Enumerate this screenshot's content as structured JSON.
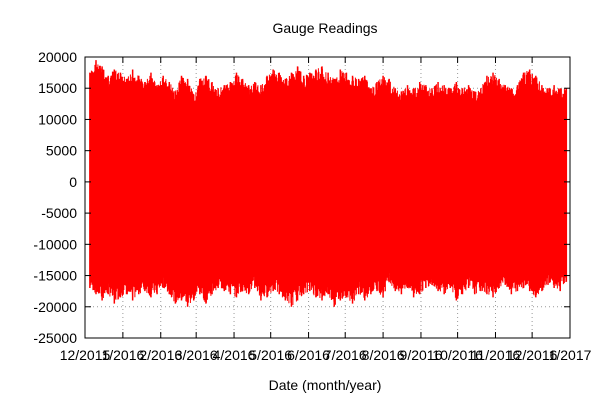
{
  "chart_data": {
    "type": "area",
    "title": "Gauge Readings",
    "xlabel": "Date (month/year)",
    "ylabel": "",
    "ylim": [
      -25000,
      20000
    ],
    "y_ticks": [
      20000,
      15000,
      10000,
      5000,
      0,
      -5000,
      -10000,
      -15000,
      -20000,
      -25000
    ],
    "y_tick_labels": [
      "20000",
      "15000",
      "10000",
      "5000",
      "0",
      "-5000",
      "-10000",
      "-15000",
      "-20000",
      "-25000"
    ],
    "x_ticks": [
      "2015-12-01",
      "2016-01-01",
      "2016-02-01",
      "2016-03-01",
      "2016-04-01",
      "2016-05-01",
      "2016-06-01",
      "2016-07-01",
      "2016-08-01",
      "2016-09-01",
      "2016-10-01",
      "2016-11-01",
      "2016-12-01",
      "2017-01-01"
    ],
    "x_tick_labels": [
      "12/2015",
      "1/2016",
      "2/2016",
      "3/2016",
      "4/2016",
      "5/2016",
      "6/2016",
      "7/2016",
      "8/2016",
      "9/2016",
      "10/2016",
      "11/2016",
      "12/2016",
      "1/2017"
    ],
    "xlim": [
      "2015-12-01",
      "2017-01-01"
    ],
    "grid": true,
    "series_color": "#ff0000",
    "series": [
      {
        "x": [
          "2015-12-05",
          "2015-12-10",
          "2015-12-15",
          "2015-12-20",
          "2015-12-25",
          "2015-12-30",
          "2016-01-04",
          "2016-01-09",
          "2016-01-14",
          "2016-01-19",
          "2016-01-24",
          "2016-01-29",
          "2016-02-03",
          "2016-02-08",
          "2016-02-13",
          "2016-02-18",
          "2016-02-23",
          "2016-02-28",
          "2016-03-04",
          "2016-03-09",
          "2016-03-14",
          "2016-03-19",
          "2016-03-24",
          "2016-03-29",
          "2016-04-03",
          "2016-04-08",
          "2016-04-13",
          "2016-04-18",
          "2016-04-23",
          "2016-04-28",
          "2016-05-03",
          "2016-05-08",
          "2016-05-13",
          "2016-05-18",
          "2016-05-23",
          "2016-05-28",
          "2016-06-02",
          "2016-06-07",
          "2016-06-12",
          "2016-06-17",
          "2016-06-22",
          "2016-06-27",
          "2016-07-02",
          "2016-07-07",
          "2016-07-12",
          "2016-07-17",
          "2016-07-22",
          "2016-07-27",
          "2016-08-01",
          "2016-08-06",
          "2016-08-11",
          "2016-08-16",
          "2016-08-21",
          "2016-08-26",
          "2016-08-31",
          "2016-09-05",
          "2016-09-10",
          "2016-09-15",
          "2016-09-20",
          "2016-09-25",
          "2016-09-30",
          "2016-10-05",
          "2016-10-10",
          "2016-10-15",
          "2016-10-20",
          "2016-10-25",
          "2016-10-30",
          "2016-11-04",
          "2016-11-09",
          "2016-11-14",
          "2016-11-19",
          "2016-11-24",
          "2016-11-29",
          "2016-12-04",
          "2016-12-09",
          "2016-12-14",
          "2016-12-19",
          "2016-12-24",
          "2016-12-29"
        ],
        "max": [
          17500,
          19500,
          18500,
          17000,
          18000,
          17500,
          16500,
          18000,
          17000,
          16000,
          17500,
          15500,
          17000,
          16000,
          14500,
          17000,
          16500,
          14000,
          16500,
          17000,
          16000,
          15000,
          15500,
          16000,
          17500,
          16500,
          15500,
          16000,
          15500,
          17000,
          18000,
          17500,
          16500,
          17500,
          18500,
          17000,
          17500,
          18000,
          18500,
          17500,
          16500,
          18000,
          17500,
          17000,
          16500,
          17000,
          15000,
          16000,
          17000,
          16500,
          15000,
          14500,
          15500,
          15000,
          16000,
          15500,
          15000,
          16000,
          15500,
          15000,
          16000,
          15000,
          15500,
          14500,
          15000,
          17000,
          17500,
          16500,
          15500,
          15000,
          15500,
          17500,
          18000,
          17000,
          15500,
          15000,
          15500,
          15000,
          15000
        ],
        "min": [
          -17000,
          -18000,
          -19000,
          -18000,
          -19500,
          -18500,
          -18000,
          -19000,
          -18000,
          -17500,
          -18500,
          -18000,
          -17000,
          -18000,
          -19500,
          -19000,
          -20000,
          -19000,
          -18000,
          -19500,
          -18000,
          -17000,
          -17500,
          -18000,
          -18500,
          -17500,
          -18000,
          -17000,
          -19000,
          -18500,
          -17500,
          -18000,
          -19000,
          -20000,
          -19000,
          -18000,
          -17500,
          -18500,
          -19000,
          -18000,
          -20000,
          -19000,
          -18500,
          -19500,
          -18000,
          -19000,
          -18000,
          -17500,
          -18500,
          -16000,
          -17500,
          -18000,
          -17000,
          -18500,
          -18000,
          -17000,
          -16500,
          -17500,
          -18000,
          -17000,
          -19000,
          -18000,
          -17000,
          -18000,
          -17500,
          -18000,
          -18500,
          -17000,
          -16500,
          -18000,
          -17500,
          -17000,
          -17500,
          -18500,
          -17500,
          -16500,
          -17000,
          -17500,
          -16000
        ]
      }
    ]
  }
}
